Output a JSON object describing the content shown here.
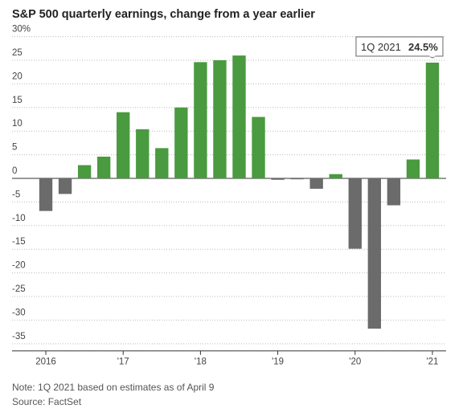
{
  "chart_data": {
    "type": "bar",
    "title": "S&P 500 quarterly earnings, change from a year earlier",
    "categories": [
      "2016",
      null,
      null,
      null,
      "'17",
      null,
      null,
      null,
      "'18",
      null,
      null,
      null,
      "'19",
      null,
      null,
      null,
      "'20",
      null,
      null,
      null,
      "'21"
    ],
    "values": [
      -6.9,
      -3.3,
      2.8,
      4.6,
      14.0,
      10.4,
      6.4,
      15.0,
      24.6,
      25.0,
      26.0,
      13.0,
      -0.3,
      -0.2,
      -2.2,
      0.9,
      -14.9,
      -31.8,
      -5.7,
      4.0,
      24.5
    ],
    "value_labels": [
      null,
      null,
      null,
      null,
      null,
      null,
      null,
      null,
      null,
      null,
      null,
      null,
      null,
      null,
      null,
      null,
      null,
      null,
      null,
      null,
      "24.5%"
    ],
    "positive_color": "#4a9a3f",
    "negative_color": "#6b6b6b",
    "ylim": [
      -36,
      31
    ],
    "yticks": [
      {
        "value": 30,
        "label": "30%"
      },
      25,
      20,
      15,
      10,
      5,
      0,
      -5,
      -10,
      -15,
      -20,
      -25,
      -30,
      -35
    ],
    "grid": true,
    "annotation": "1Q 2021",
    "note": "Note: 1Q 2021 based on estimates as of April 9",
    "source": "Source: FactSet"
  }
}
